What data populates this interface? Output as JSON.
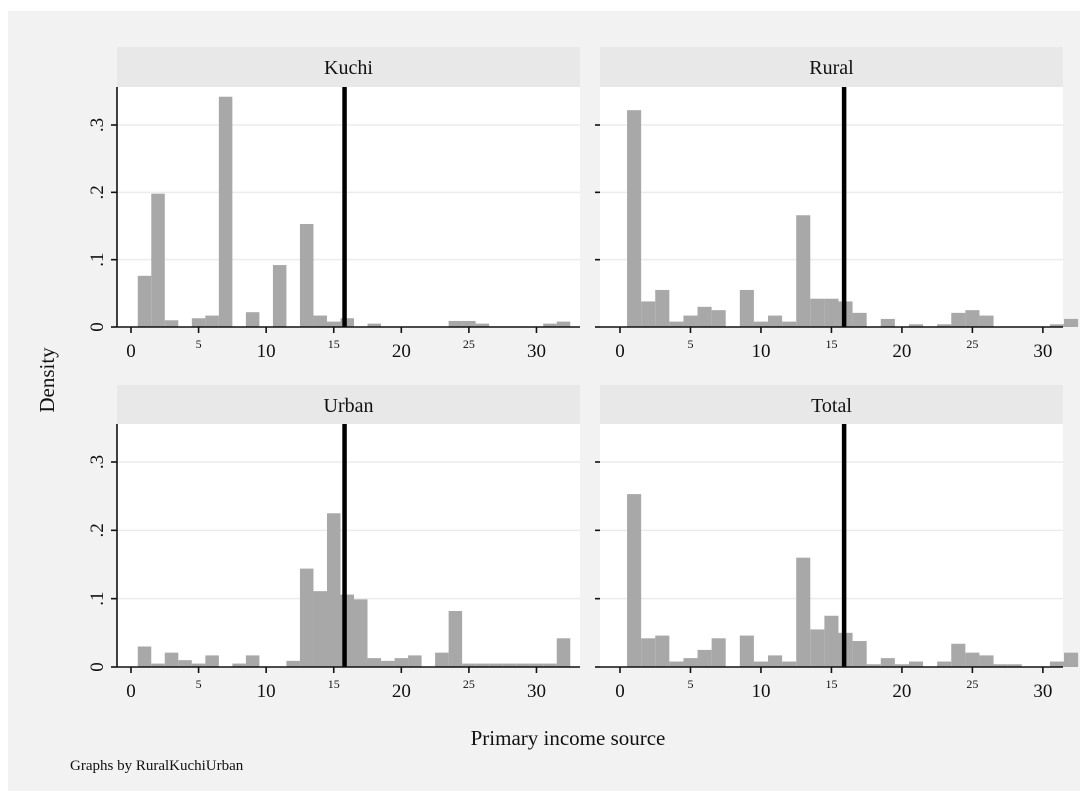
{
  "chart_data": {
    "type": "bar",
    "layout": "2x2 histogram panels",
    "ylabel": "Density",
    "xlabel": "Primary income source",
    "note": "Graphs by RuralKuchiUrban",
    "xlim": [
      0,
      33
    ],
    "ylim": [
      0,
      0.36
    ],
    "bin_width": 1,
    "bin_start": 0.5,
    "y_ticks": [
      {
        "value": 0,
        "label": "0"
      },
      {
        "value": 0.1,
        "label": ".1"
      },
      {
        "value": 0.2,
        "label": ".2"
      },
      {
        "value": 0.3,
        "label": ".3"
      }
    ],
    "x_ticks": [
      {
        "value": 0,
        "label": "0",
        "size": "large"
      },
      {
        "value": 5,
        "label": "5",
        "size": "small"
      },
      {
        "value": 10,
        "label": "10",
        "size": "large"
      },
      {
        "value": 15,
        "label": "15",
        "size": "small"
      },
      {
        "value": 20,
        "label": "20",
        "size": "large"
      },
      {
        "value": 25,
        "label": "25",
        "size": "small"
      },
      {
        "value": 30,
        "label": "30",
        "size": "large"
      }
    ],
    "grid": true,
    "panels": [
      {
        "title": "Kuchi",
        "median_line": 15.8,
        "values": [
          0.076,
          0.198,
          0.01,
          0,
          0.013,
          0.017,
          0.342,
          0,
          0.022,
          0,
          0.092,
          0,
          0.153,
          0.017,
          0.008,
          0.013,
          0,
          0.005,
          0,
          0,
          0,
          0,
          0,
          0.009,
          0.009,
          0.005,
          0,
          0,
          0,
          0,
          0.005,
          0.008
        ]
      },
      {
        "title": "Rural",
        "median_line": 15.9,
        "values": [
          0.322,
          0.038,
          0.055,
          0.008,
          0.017,
          0.03,
          0.025,
          0,
          0.055,
          0.008,
          0.017,
          0.008,
          0.166,
          0.042,
          0.042,
          0.038,
          0.021,
          0,
          0.012,
          0,
          0.004,
          0,
          0.004,
          0.021,
          0.025,
          0.017,
          0,
          0,
          0,
          0,
          0.004,
          0.012
        ]
      },
      {
        "title": "Urban",
        "median_line": 15.8,
        "values": [
          0.03,
          0.005,
          0.021,
          0.01,
          0.005,
          0.017,
          0,
          0.005,
          0.017,
          0,
          0,
          0.009,
          0.144,
          0.111,
          0.225,
          0.106,
          0.099,
          0.013,
          0.009,
          0.013,
          0.017,
          0,
          0.021,
          0.082,
          0.005,
          0.005,
          0.005,
          0.005,
          0.005,
          0.005,
          0.005,
          0.042
        ]
      },
      {
        "title": "Total",
        "median_line": 15.9,
        "values": [
          0.253,
          0.042,
          0.046,
          0.008,
          0.013,
          0.025,
          0.042,
          0,
          0.046,
          0.008,
          0.017,
          0.008,
          0.16,
          0.055,
          0.075,
          0.05,
          0.038,
          0.004,
          0.013,
          0.004,
          0.008,
          0,
          0.008,
          0.034,
          0.021,
          0.017,
          0.004,
          0.004,
          0,
          0,
          0.008,
          0.021
        ]
      }
    ]
  }
}
